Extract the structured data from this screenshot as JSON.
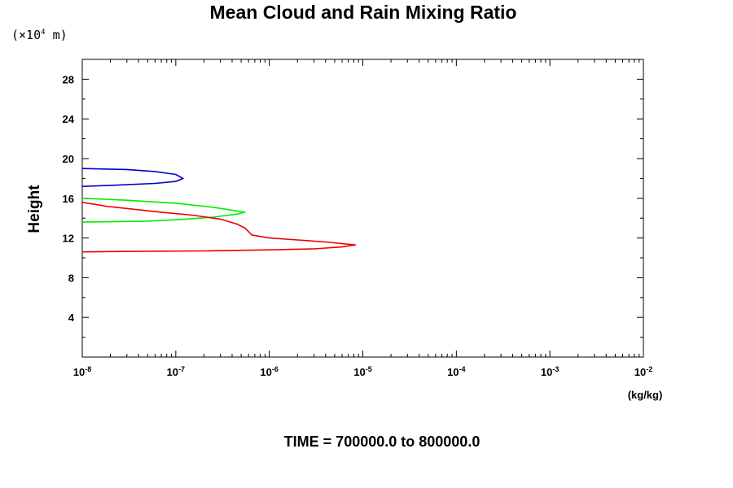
{
  "chart_data": {
    "type": "line",
    "title": "Mean Cloud and Rain Mixing Ratio",
    "y_unit_prefix": "(×10",
    "y_unit_exponent": "4",
    "y_unit_suffix": " m)",
    "ylabel": "Height",
    "xlabel": "(kg/kg)",
    "footer": "TIME = 700000.0 to 800000.0",
    "x_scale": "log",
    "xlim": [
      1e-08,
      0.01
    ],
    "ylim": [
      0,
      30
    ],
    "x_ticks": [
      {
        "base": "10",
        "exp": "-8"
      },
      {
        "base": "10",
        "exp": "-7"
      },
      {
        "base": "10",
        "exp": "-6"
      },
      {
        "base": "10",
        "exp": "-5"
      },
      {
        "base": "10",
        "exp": "-4"
      },
      {
        "base": "10",
        "exp": "-3"
      },
      {
        "base": "10",
        "exp": "-2"
      }
    ],
    "y_ticks": [
      "4",
      "8",
      "12",
      "16",
      "20",
      "24",
      "28"
    ],
    "grid": false,
    "legend": "none",
    "series": [
      {
        "color": "#0000cc",
        "points": [
          [
            1e-08,
            19.0
          ],
          [
            3e-08,
            18.9
          ],
          [
            6e-08,
            18.7
          ],
          [
            1e-07,
            18.4
          ],
          [
            1.2e-07,
            18.0
          ],
          [
            1e-07,
            17.7
          ],
          [
            6e-08,
            17.5
          ],
          [
            2e-08,
            17.3
          ],
          [
            1e-08,
            17.2
          ]
        ]
      },
      {
        "color": "#00ee00",
        "points": [
          [
            1e-08,
            16.0
          ],
          [
            3e-08,
            15.8
          ],
          [
            1e-07,
            15.5
          ],
          [
            2.5e-07,
            15.1
          ],
          [
            4e-07,
            14.8
          ],
          [
            5.5e-07,
            14.6
          ],
          [
            4.5e-07,
            14.4
          ],
          [
            2.5e-07,
            14.1
          ],
          [
            1.3e-07,
            13.9
          ],
          [
            5e-08,
            13.7
          ],
          [
            1e-08,
            13.6
          ]
        ]
      },
      {
        "color": "#ee0000",
        "points": [
          [
            1e-08,
            15.6
          ],
          [
            1.8e-08,
            15.2
          ],
          [
            3.5e-08,
            14.9
          ],
          [
            7e-08,
            14.6
          ],
          [
            1.5e-07,
            14.3
          ],
          [
            3e-07,
            13.9
          ],
          [
            4.5e-07,
            13.4
          ],
          [
            5.5e-07,
            13.0
          ],
          [
            6.5e-07,
            12.3
          ],
          [
            1e-06,
            12.0
          ],
          [
            2e-06,
            11.8
          ],
          [
            4e-06,
            11.6
          ],
          [
            6.5e-06,
            11.4
          ],
          [
            8.3e-06,
            11.3
          ],
          [
            6e-06,
            11.1
          ],
          [
            3e-06,
            10.9
          ],
          [
            1e-06,
            10.8
          ],
          [
            2e-07,
            10.7
          ],
          [
            3e-08,
            10.65
          ],
          [
            1e-08,
            10.6
          ]
        ]
      }
    ]
  }
}
